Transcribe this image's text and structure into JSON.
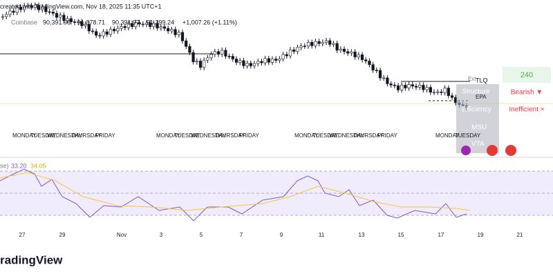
{
  "header": {
    "caption": "created with TradingView.com, Nov 18, 2025 11:35 UTC+1",
    "exchange": "Coinbase",
    "ohlc": [
      "90,391.98",
      "91,878.71",
      "90,391.97",
      "91,399.24"
    ],
    "change": "+1,007.26 (+1.11%)"
  },
  "day_groups": [
    [
      "MONDAY",
      "TUESDAY",
      "WEDNESDAY",
      "THURSDAY",
      "FRIDAY"
    ],
    [
      "MONDAY",
      "TUESDAY",
      "WEDNESDAY",
      "THURSDAY",
      "FRIDAY"
    ],
    [
      "MONDAY",
      "TUESDAY",
      "WEDNESDAY",
      "THURSDAY",
      "FRIDAY"
    ],
    [
      "MONDAY",
      "TUESDAY"
    ]
  ],
  "markers": {
    "ext": "Ext",
    "tlq": "TLQ",
    "structure": "Structure",
    "epa": "EPA",
    "efficiency": "Efficiency",
    "msu": "MSU",
    "vta": "VTA"
  },
  "panel": {
    "timeframe": "240",
    "trend": "Bearish ▼",
    "state": "Inefficient ×"
  },
  "rsi": {
    "name": "se)",
    "values": [
      "33.20",
      "34.05"
    ]
  },
  "x_axis": [
    "27",
    "29",
    "Nov",
    "3",
    "5",
    "7",
    "9",
    "11",
    "13",
    "15",
    "17",
    "19",
    "21"
  ],
  "brand": "radingView"
}
